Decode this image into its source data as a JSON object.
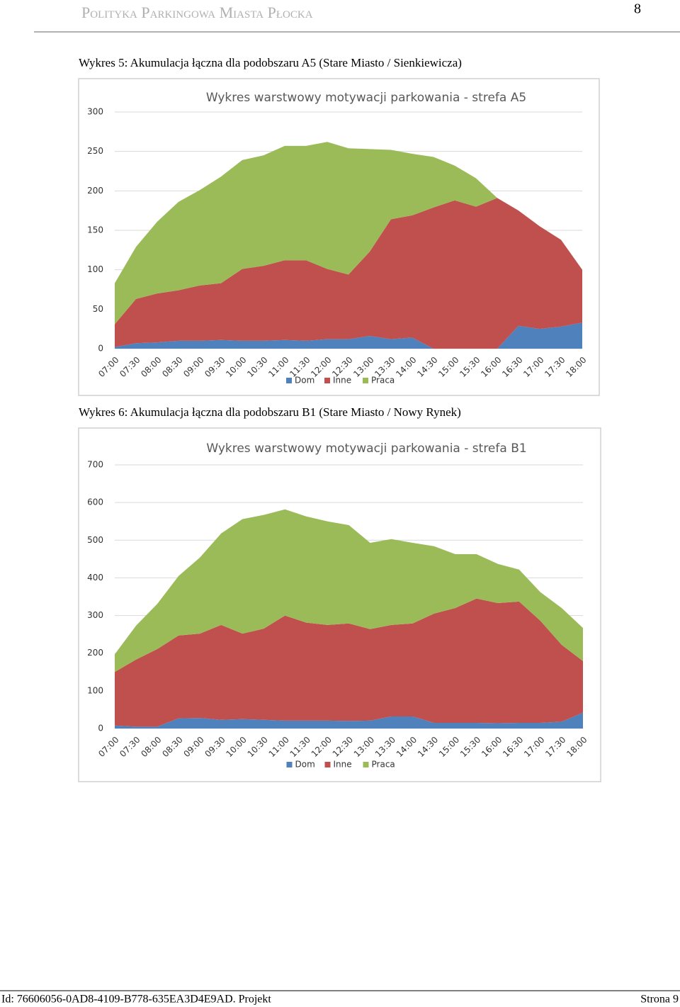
{
  "header": {
    "title": "Polityka Parkingowa Miasta Płocka",
    "page": "8"
  },
  "footer": {
    "id": "Id: 76606056-0AD8-4109-B778-635EA3D4E9AD. Projekt",
    "page": "Strona 9"
  },
  "chart_data": [
    {
      "type": "area",
      "caption": "Wykres 5: Akumulacja łączna dla podobszaru A5 (Stare Miasto / Sienkiewicza)",
      "title": "Wykres warstwowy motywacji parkowania - strefa A5",
      "categories": [
        "07:00",
        "07:30",
        "08:00",
        "08:30",
        "09:00",
        "09:30",
        "10:00",
        "10:30",
        "11:00",
        "11:30",
        "12:00",
        "12:30",
        "13:00",
        "13:30",
        "14:00",
        "14:30",
        "15:00",
        "15:30",
        "16:00",
        "16:30",
        "17:00",
        "17:30",
        "18:00"
      ],
      "stacked": true,
      "grid": true,
      "legend": "bottom",
      "ylim": [
        0,
        300
      ],
      "yticks": [
        0,
        50,
        100,
        150,
        200,
        250,
        300
      ],
      "series": [
        {
          "name": "Dom",
          "color": "#4f81bd",
          "values": [
            2,
            7,
            8,
            10,
            10,
            11,
            10,
            10,
            11,
            10,
            12,
            12,
            16,
            12,
            14,
            0,
            0,
            0,
            0,
            29,
            25,
            28,
            33
          ]
        },
        {
          "name": "Inne",
          "color": "#c0504d",
          "values": [
            29,
            56,
            62,
            64,
            70,
            72,
            91,
            95,
            101,
            102,
            89,
            82,
            107,
            152,
            155,
            179,
            188,
            180,
            191,
            146,
            130,
            110,
            67
          ]
        },
        {
          "name": "Praca",
          "color": "#9bbb59",
          "values": [
            52,
            66,
            91,
            112,
            121,
            135,
            138,
            140,
            145,
            145,
            161,
            160,
            130,
            88,
            78,
            64,
            44,
            36,
            0,
            0,
            0,
            0,
            0
          ]
        }
      ]
    },
    {
      "type": "area",
      "caption": "Wykres 6: Akumulacja łączna dla podobszaru B1 (Stare Miasto / Nowy Rynek)",
      "title": "Wykres warstwowy motywacji parkowania - strefa B1",
      "categories": [
        "07:00",
        "07:30",
        "08:00",
        "08:30",
        "09:00",
        "09:30",
        "10:00",
        "10:30",
        "11:00",
        "11:30",
        "12:00",
        "12:30",
        "13:00",
        "13:30",
        "14:00",
        "14:30",
        "15:00",
        "15:30",
        "16:00",
        "16:30",
        "17:00",
        "17:30",
        "18:00"
      ],
      "stacked": true,
      "grid": true,
      "legend": "bottom",
      "ylim": [
        0,
        700
      ],
      "yticks": [
        0,
        100,
        200,
        300,
        400,
        500,
        600,
        700
      ],
      "series": [
        {
          "name": "Dom",
          "color": "#4f81bd",
          "values": [
            8,
            5,
            5,
            27,
            28,
            23,
            25,
            23,
            21,
            21,
            21,
            20,
            21,
            32,
            32,
            15,
            15,
            15,
            14,
            15,
            15,
            18,
            42
          ]
        },
        {
          "name": "Inne",
          "color": "#c0504d",
          "values": [
            142,
            178,
            206,
            220,
            224,
            252,
            227,
            242,
            279,
            260,
            254,
            259,
            243,
            243,
            247,
            290,
            305,
            330,
            319,
            322,
            271,
            204,
            137
          ]
        },
        {
          "name": "Praca",
          "color": "#9bbb59",
          "values": [
            47,
            90,
            120,
            158,
            202,
            243,
            304,
            302,
            282,
            282,
            275,
            261,
            229,
            228,
            214,
            179,
            143,
            118,
            104,
            85,
            76,
            98,
            88
          ]
        }
      ]
    }
  ]
}
